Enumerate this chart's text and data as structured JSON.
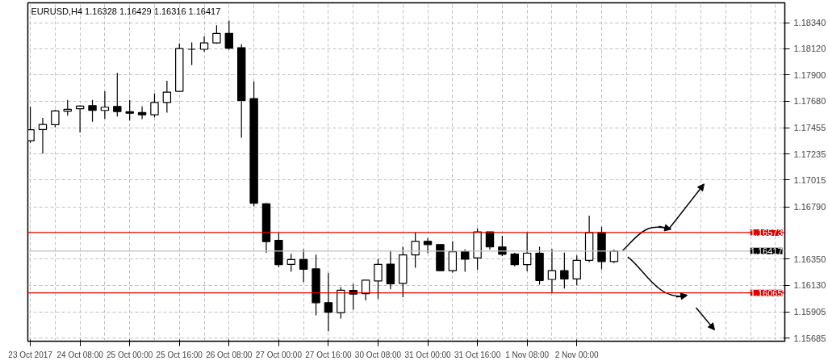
{
  "chart_data": {
    "type": "candlestick",
    "title": "EURUSD,H4  1.16328 1.16429 1.16316 1.16417",
    "categories": [
      "23 Oct 2017",
      null,
      null,
      null,
      "24 Oct 08:00",
      null,
      null,
      null,
      "25 Oct 00:00",
      null,
      null,
      null,
      "25 Oct 16:00",
      null,
      null,
      null,
      "26 Oct 08:00",
      null,
      null,
      null,
      "27 Oct 00:00",
      null,
      null,
      null,
      "27 Oct 16:00",
      null,
      null,
      null,
      "30 Oct 08:00",
      null,
      null,
      null,
      "31 Oct 00:00",
      null,
      null,
      null,
      "31 Oct 16:00",
      null,
      null,
      null,
      "1 Nov 08:00",
      null,
      null,
      null,
      "2 Nov 00:00",
      null,
      null,
      null,
      null,
      null,
      null,
      null,
      null,
      null,
      null,
      null,
      null,
      null,
      null,
      null,
      null
    ],
    "ohlc": [
      [
        1.17345,
        1.17632,
        1.17329,
        1.17438
      ],
      [
        1.17441,
        1.17538,
        1.17238,
        1.17483
      ],
      [
        1.17481,
        1.17605,
        1.17458,
        1.17597
      ],
      [
        1.17595,
        1.1769,
        1.17556,
        1.1761
      ],
      [
        1.17615,
        1.17645,
        1.17416,
        1.17637
      ],
      [
        1.17641,
        1.1769,
        1.17505,
        1.17601
      ],
      [
        1.17601,
        1.17762,
        1.17532,
        1.17628
      ],
      [
        1.17635,
        1.17917,
        1.1755,
        1.17592
      ],
      [
        1.1759,
        1.1769,
        1.17516,
        1.17578
      ],
      [
        1.17583,
        1.17635,
        1.17528,
        1.17565
      ],
      [
        1.17565,
        1.17743,
        1.17543,
        1.17668
      ],
      [
        1.17668,
        1.1785,
        1.17583,
        1.17755
      ],
      [
        1.17762,
        1.18166,
        1.17762,
        1.18122
      ],
      [
        1.18116,
        1.18173,
        1.17984,
        1.18116
      ],
      [
        1.18116,
        1.18224,
        1.18096,
        1.18169
      ],
      [
        1.18169,
        1.18318,
        1.18162,
        1.18249
      ],
      [
        1.18249,
        1.18358,
        1.18113,
        1.18126
      ],
      [
        1.18129,
        1.18158,
        1.17371,
        1.17685
      ],
      [
        1.17701,
        1.17846,
        1.16793,
        1.1682
      ],
      [
        1.16815,
        1.1682,
        1.16403,
        1.16496
      ],
      [
        1.16508,
        1.1657,
        1.1628,
        1.16303
      ],
      [
        1.16305,
        1.16394,
        1.16242,
        1.16345
      ],
      [
        1.16345,
        1.16432,
        1.16156,
        1.16263
      ],
      [
        1.16267,
        1.16387,
        1.15875,
        1.15982
      ],
      [
        1.15982,
        1.16232,
        1.15741,
        1.15902
      ],
      [
        1.15898,
        1.16114,
        1.15848,
        1.16087
      ],
      [
        1.16085,
        1.1614,
        1.15924,
        1.16055
      ],
      [
        1.16058,
        1.16172,
        1.16002,
        1.16172
      ],
      [
        1.16165,
        1.16352,
        1.16013,
        1.16305
      ],
      [
        1.16307,
        1.16421,
        1.16096,
        1.16142
      ],
      [
        1.16145,
        1.16454,
        1.16029,
        1.16385
      ],
      [
        1.16385,
        1.16574,
        1.16276,
        1.16499
      ],
      [
        1.16499,
        1.16526,
        1.16399,
        1.16472
      ],
      [
        1.16472,
        1.16472,
        1.16252,
        1.16252
      ],
      [
        1.16252,
        1.16499,
        1.16236,
        1.16412
      ],
      [
        1.16412,
        1.16432,
        1.16242,
        1.16349
      ],
      [
        1.16359,
        1.16608,
        1.16259,
        1.16579
      ],
      [
        1.16579,
        1.16579,
        1.1643,
        1.16452
      ],
      [
        1.16452,
        1.16546,
        1.16375,
        1.1639
      ],
      [
        1.16392,
        1.16403,
        1.16289,
        1.16303
      ],
      [
        1.16303,
        1.16572,
        1.16247,
        1.16399
      ],
      [
        1.16399,
        1.16454,
        1.16134,
        1.16169
      ],
      [
        1.16178,
        1.16434,
        1.16065,
        1.16252
      ],
      [
        1.16252,
        1.16405,
        1.16102,
        1.16182
      ],
      [
        1.16182,
        1.16381,
        1.16129,
        1.16339
      ],
      [
        1.16339,
        1.16715,
        1.16325,
        1.16572
      ],
      [
        1.16572,
        1.16621,
        1.16263,
        1.16329
      ],
      [
        1.16328,
        1.16429,
        1.16316,
        1.16417
      ],
      null,
      null,
      null,
      null,
      null,
      null,
      null,
      null,
      null,
      null,
      null,
      null,
      null
    ],
    "ylim": [
      1.15658,
      1.18507
    ],
    "yticks": [
      {
        "value": 1.1834,
        "label": "1.18340"
      },
      {
        "value": 1.1812,
        "label": "1.18120"
      },
      {
        "value": 1.179,
        "label": "1.17900"
      },
      {
        "value": 1.1768,
        "label": "1.17680"
      },
      {
        "value": 1.17455,
        "label": "1.17455"
      },
      {
        "value": 1.17235,
        "label": "1.17235"
      },
      {
        "value": 1.17015,
        "label": "1.17015"
      },
      {
        "value": 1.1679,
        "label": "1.16790"
      },
      {
        "value": 1.1635,
        "label": "1.16350"
      },
      {
        "value": 1.1613,
        "label": "1.16130"
      },
      {
        "value": 1.15905,
        "label": "1.15905"
      },
      {
        "value": 1.15685,
        "label": "1.15685"
      }
    ],
    "ref_lines": [
      {
        "axis": "y",
        "value": 1.16573,
        "label": "1.16573",
        "color": "#e00000"
      },
      {
        "axis": "y",
        "value": 1.16065,
        "label": "1.16065",
        "color": "#e00000"
      },
      {
        "axis": "y",
        "value": 1.16417,
        "label": "1.16417",
        "color": "#c0c0c0"
      }
    ],
    "grid": true
  }
}
